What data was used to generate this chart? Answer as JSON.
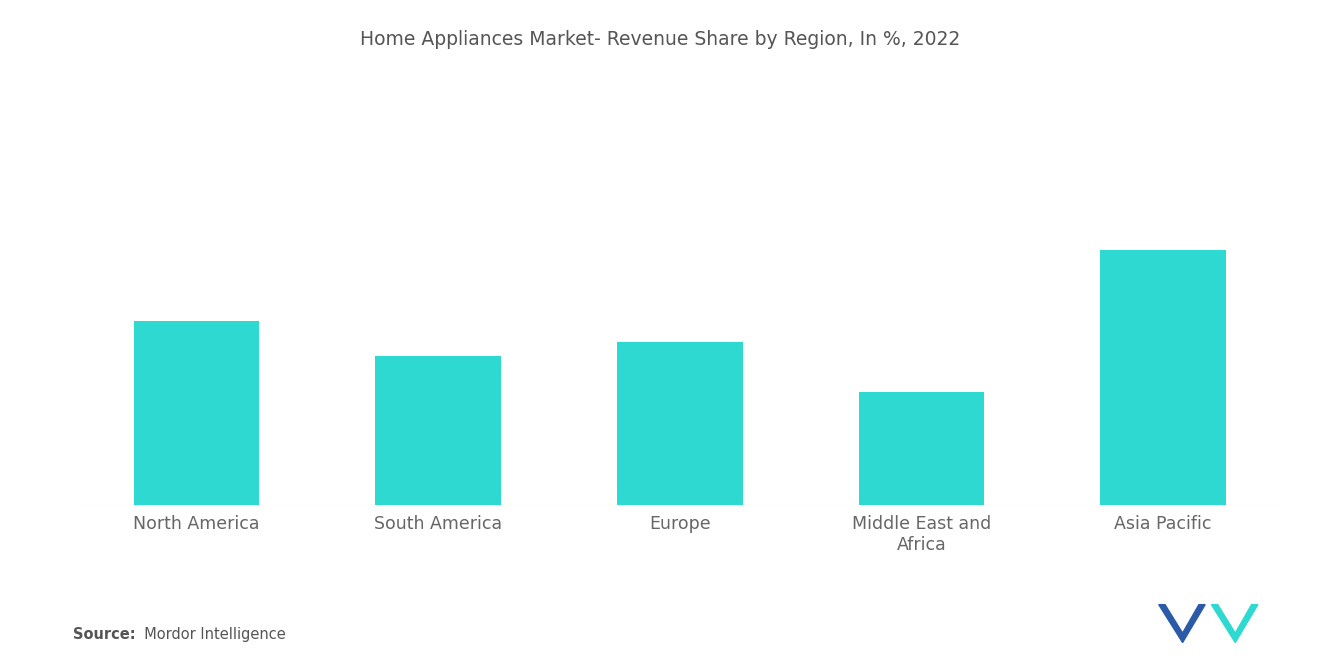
{
  "title": "Home Appliances Market- Revenue Share by Region, In %, 2022",
  "categories": [
    "North America",
    "South America",
    "Europe",
    "Middle East and\nAfrica",
    "Asia Pacific"
  ],
  "values": [
    26,
    21,
    23,
    16,
    36
  ],
  "bar_color": "#2DD9D0",
  "background_color": "#ffffff",
  "title_fontsize": 13.5,
  "tick_fontsize": 12.5,
  "source_bold": "Source:",
  "source_detail": "  Mordor Intelligence",
  "ylim": [
    0,
    60
  ],
  "bar_width": 0.52
}
